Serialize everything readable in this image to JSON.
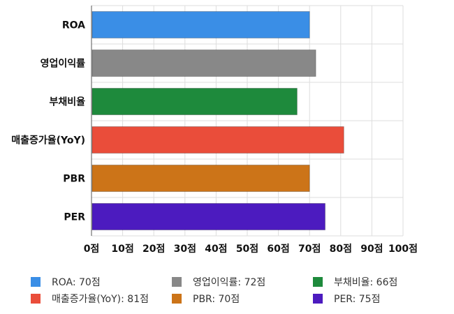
{
  "chart_data": {
    "type": "bar",
    "orientation": "horizontal",
    "categories": [
      "ROA",
      "영업이익률",
      "부채비율",
      "매출증가율(YoY)",
      "PBR",
      "PER"
    ],
    "values": [
      70,
      72,
      66,
      81,
      70,
      75
    ],
    "colors": [
      "#3a8ee6",
      "#888888",
      "#1e8a3c",
      "#ea4d3a",
      "#cc7418",
      "#4c1bbf"
    ],
    "xlim": [
      0,
      100
    ],
    "xticks": [
      "0점",
      "10점",
      "20점",
      "30점",
      "40점",
      "50점",
      "60점",
      "70점",
      "80점",
      "90점",
      "100점"
    ],
    "grid": true,
    "legend_position": "bottom",
    "legend": [
      "ROA: 70점",
      "영업이익률: 72점",
      "부채비율: 66점",
      "매출증가율(YoY): 81점",
      "PBR: 70점",
      "PER: 75점"
    ]
  }
}
